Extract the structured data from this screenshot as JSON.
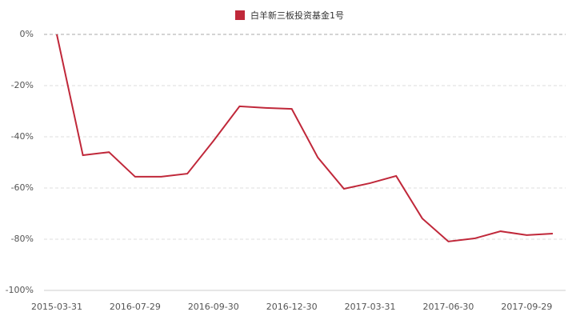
{
  "chart_data": {
    "type": "line",
    "categories": [
      "2015-03-31",
      null,
      null,
      "2016-07-29",
      null,
      null,
      "2016-09-30",
      null,
      null,
      "2016-12-30",
      null,
      null,
      "2017-03-31",
      null,
      null,
      "2017-06-30",
      null,
      null,
      "2017-09-29",
      null
    ],
    "series": [
      {
        "name": "白羊新三板投资基金1号",
        "color": "#c0283a",
        "values": [
          0,
          -47.2,
          -46,
          -55.6,
          -55.6,
          -54.4,
          -41.6,
          -28.1,
          -28.7,
          -29.1,
          -48.1,
          -60.3,
          -58.1,
          -55.3,
          -71.9,
          -80.9,
          -79.7,
          -76.9,
          -78.4,
          -77.8
        ]
      }
    ],
    "ylim": [
      -100,
      0
    ],
    "yticks": [
      {
        "value": 0,
        "label": "0%"
      },
      {
        "value": -20,
        "label": "-20%"
      },
      {
        "value": -40,
        "label": "-40%"
      },
      {
        "value": -60,
        "label": "-60%"
      },
      {
        "value": -80,
        "label": "-80%"
      },
      {
        "value": -100,
        "label": "-100%"
      }
    ],
    "grid": true
  }
}
